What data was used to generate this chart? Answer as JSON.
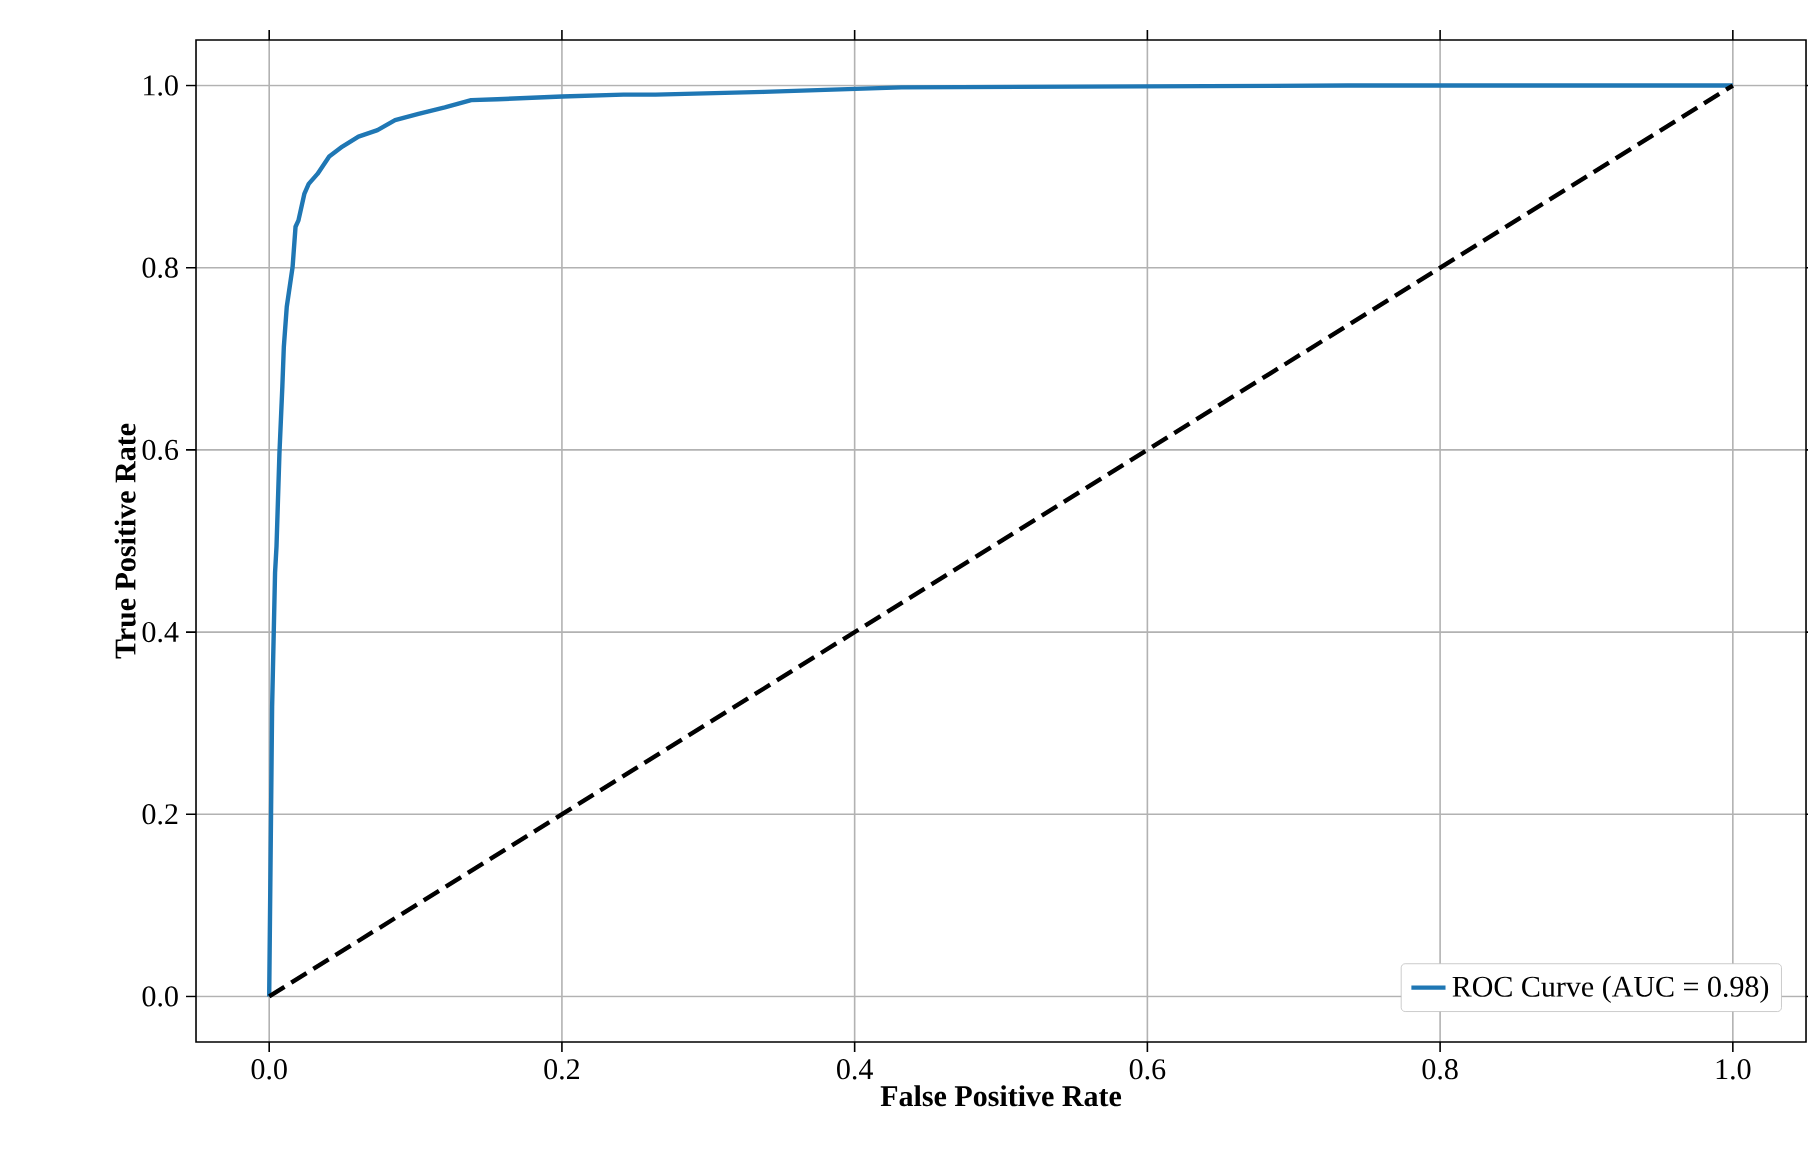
{
  "chart_data": {
    "type": "line",
    "xlabel": "False Positive Rate",
    "ylabel": "True Positive Rate",
    "xlim": [
      -0.05,
      1.05
    ],
    "ylim": [
      -0.05,
      1.05
    ],
    "xticks": [
      {
        "value": 0,
        "label": "0.0"
      },
      {
        "value": 0.2,
        "label": "0.2"
      },
      {
        "value": 0.4,
        "label": "0.4"
      },
      {
        "value": 0.6,
        "label": "0.6"
      },
      {
        "value": 0.8,
        "label": "0.8"
      },
      {
        "value": 1,
        "label": "1.0"
      }
    ],
    "yticks": [
      {
        "value": 0,
        "label": "0.0"
      },
      {
        "value": 0.2,
        "label": "0.2"
      },
      {
        "value": 0.4,
        "label": "0.4"
      },
      {
        "value": 0.6,
        "label": "0.6"
      },
      {
        "value": 0.8,
        "label": "0.8"
      },
      {
        "value": 1,
        "label": "1.0"
      }
    ],
    "grid": true,
    "legend": "bottom right",
    "series": [
      {
        "name": "ROC Curve (AUC = 0.98)",
        "color": "#1f77b4",
        "line_style": "solid",
        "x": [
          0,
          0.002,
          0.004,
          0.005,
          0.007,
          0.009,
          0.01,
          0.012,
          0.014,
          0.016,
          0.018,
          0.02,
          0.024,
          0.027,
          0.033,
          0.041,
          0.05,
          0.061,
          0.074,
          0.086,
          0.102,
          0.12,
          0.138,
          0.156,
          0.2,
          0.242,
          0.264,
          0.338,
          0.432,
          0.737,
          1.0
        ],
        "values": [
          0,
          0.318,
          0.465,
          0.494,
          0.596,
          0.67,
          0.713,
          0.757,
          0.779,
          0.801,
          0.845,
          0.852,
          0.881,
          0.892,
          0.903,
          0.922,
          0.933,
          0.944,
          0.951,
          0.962,
          0.969,
          0.976,
          0.984,
          0.985,
          0.988,
          0.99,
          0.99,
          0.993,
          0.998,
          1.0,
          1.0
        ]
      },
      {
        "color": "#000000",
        "line_style": "dashed",
        "x": [
          0,
          1
        ],
        "values": [
          0,
          1
        ]
      }
    ]
  }
}
